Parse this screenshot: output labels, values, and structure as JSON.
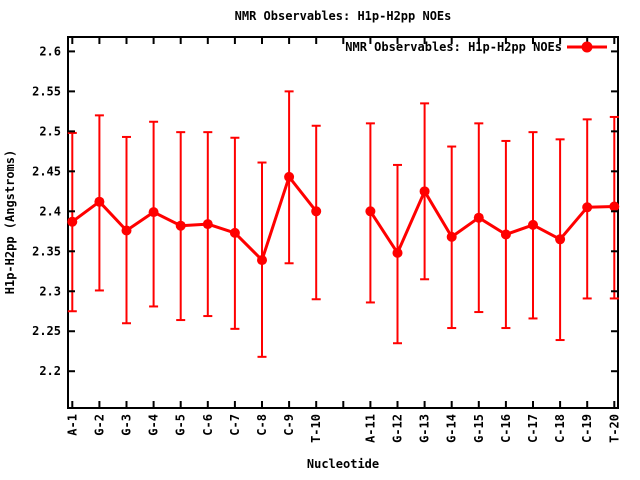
{
  "page_title": "NMR Observables: H1p-H2pp NOEs",
  "chart_data": {
    "type": "line",
    "title": "NMR Observables: H1p-H2pp NOEs",
    "xlabel": "Nucleotide",
    "ylabel": "H1p-H2pp (Angstroms)",
    "legend": {
      "label": "NMR Observables: H1p-H2pp NOEs",
      "position": "top-right",
      "marker": "filled-circle-with-line"
    },
    "colors": {
      "series": "#ff0000",
      "axis": "#000000",
      "background": "#ffffff"
    },
    "grid": false,
    "error_bars": true,
    "ylim": [
      2.154,
      2.618
    ],
    "yticks": [
      2.2,
      2.25,
      2.3,
      2.35,
      2.4,
      2.45,
      2.5,
      2.55,
      2.6
    ],
    "ytick_labels": [
      "2.2",
      "2.25",
      "2.3",
      "2.35",
      "2.4",
      "2.45",
      "2.5",
      "2.55",
      "2.6"
    ],
    "x_slot_count": 21,
    "gap_slots": [
      10
    ],
    "categories": [
      "A-1",
      "G-2",
      "G-3",
      "G-4",
      "G-5",
      "C-6",
      "C-7",
      "C-8",
      "C-9",
      "T-10",
      "A-11",
      "G-12",
      "G-13",
      "G-14",
      "G-15",
      "C-16",
      "C-17",
      "C-18",
      "C-19",
      "T-20"
    ],
    "points": [
      {
        "label": "A-1",
        "slot": 0,
        "y": 2.387,
        "ylow": 2.275,
        "yhigh": 2.498
      },
      {
        "label": "G-2",
        "slot": 1,
        "y": 2.412,
        "ylow": 2.301,
        "yhigh": 2.52
      },
      {
        "label": "G-3",
        "slot": 2,
        "y": 2.376,
        "ylow": 2.26,
        "yhigh": 2.493
      },
      {
        "label": "G-4",
        "slot": 3,
        "y": 2.399,
        "ylow": 2.281,
        "yhigh": 2.512
      },
      {
        "label": "G-5",
        "slot": 4,
        "y": 2.382,
        "ylow": 2.264,
        "yhigh": 2.499
      },
      {
        "label": "C-6",
        "slot": 5,
        "y": 2.384,
        "ylow": 2.269,
        "yhigh": 2.499
      },
      {
        "label": "C-7",
        "slot": 6,
        "y": 2.373,
        "ylow": 2.253,
        "yhigh": 2.492
      },
      {
        "label": "C-8",
        "slot": 7,
        "y": 2.339,
        "ylow": 2.218,
        "yhigh": 2.461
      },
      {
        "label": "C-9",
        "slot": 8,
        "y": 2.443,
        "ylow": 2.335,
        "yhigh": 2.55
      },
      {
        "label": "T-10",
        "slot": 9,
        "y": 2.4,
        "ylow": 2.29,
        "yhigh": 2.507
      },
      {
        "label": "A-11",
        "slot": 11,
        "y": 2.4,
        "ylow": 2.286,
        "yhigh": 2.51
      },
      {
        "label": "G-12",
        "slot": 12,
        "y": 2.348,
        "ylow": 2.235,
        "yhigh": 2.458
      },
      {
        "label": "G-13",
        "slot": 13,
        "y": 2.425,
        "ylow": 2.315,
        "yhigh": 2.535
      },
      {
        "label": "G-14",
        "slot": 14,
        "y": 2.368,
        "ylow": 2.254,
        "yhigh": 2.481
      },
      {
        "label": "G-15",
        "slot": 15,
        "y": 2.392,
        "ylow": 2.274,
        "yhigh": 2.51
      },
      {
        "label": "C-16",
        "slot": 16,
        "y": 2.371,
        "ylow": 2.254,
        "yhigh": 2.488
      },
      {
        "label": "C-17",
        "slot": 17,
        "y": 2.383,
        "ylow": 2.266,
        "yhigh": 2.499
      },
      {
        "label": "C-18",
        "slot": 18,
        "y": 2.365,
        "ylow": 2.239,
        "yhigh": 2.49
      },
      {
        "label": "C-19",
        "slot": 19,
        "y": 2.405,
        "ylow": 2.291,
        "yhigh": 2.515
      },
      {
        "label": "T-20",
        "slot": 20,
        "y": 2.406,
        "ylow": 2.291,
        "yhigh": 2.518
      }
    ]
  }
}
